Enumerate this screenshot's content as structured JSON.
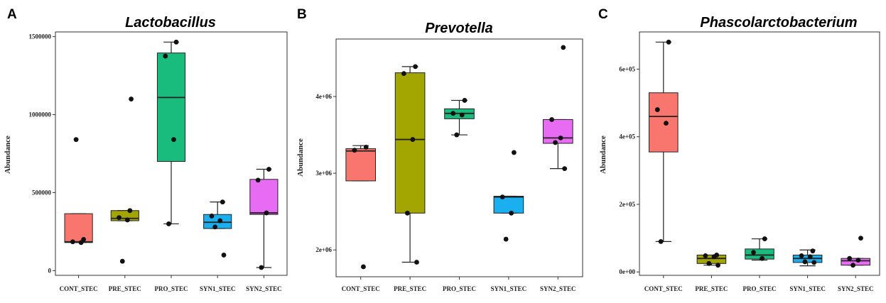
{
  "colors": {
    "CONT_STEC": "#F8766D",
    "PRE_STEC": "#A3A500",
    "PRO_STEC": "#1ABC7D",
    "SYN1_STEC": "#1AAFEF",
    "SYN2_STEC": "#E76BF3"
  },
  "chart_data": [
    {
      "type": "box",
      "panel": "A",
      "title": "Lactobacillus",
      "ylabel": "Abundance",
      "ylim": [
        -30000,
        1530000
      ],
      "yticks": [
        0,
        500000,
        1000000,
        1500000
      ],
      "ytick_labels": [
        "0",
        "500000",
        "1000000",
        "1500000"
      ],
      "categories": [
        "CONT_STEC",
        "PRE_STEC",
        "PRO_STEC",
        "SYN1_STEC",
        "SYN2_STEC"
      ],
      "boxes": [
        {
          "group": "CONT_STEC",
          "min": 180000,
          "q1": 180000,
          "median": 185000,
          "q3": 365000,
          "max": 365000,
          "points": [
            200000,
            185000,
            180000,
            840000
          ]
        },
        {
          "group": "PRE_STEC",
          "min": 320000,
          "q1": 320000,
          "median": 335000,
          "q3": 385000,
          "max": 385000,
          "points": [
            385000,
            340000,
            325000,
            60000,
            1100000
          ]
        },
        {
          "group": "PRO_STEC",
          "min": 300000,
          "q1": 700000,
          "median": 1110000,
          "q3": 1395000,
          "max": 1465000,
          "points": [
            1465000,
            1375000,
            840000,
            300000
          ]
        },
        {
          "group": "SYN1_STEC",
          "min": 270000,
          "q1": 270000,
          "median": 310000,
          "q3": 360000,
          "max": 440000,
          "points": [
            440000,
            350000,
            320000,
            280000,
            100000
          ]
        },
        {
          "group": "SYN2_STEC",
          "min": 20000,
          "q1": 360000,
          "median": 370000,
          "q3": 585000,
          "max": 650000,
          "points": [
            650000,
            580000,
            370000,
            20000
          ]
        }
      ]
    },
    {
      "type": "box",
      "panel": "B",
      "title": "Prevotella",
      "ylabel": "Abundance",
      "ylim": [
        1650000,
        4750000
      ],
      "yticks": [
        2000000,
        3000000,
        4000000
      ],
      "ytick_labels": [
        "2e+06",
        "3e+06",
        "4e+06"
      ],
      "categories": [
        "CONT_STEC",
        "PRE_STEC",
        "PRO_STEC",
        "SYN1_STEC",
        "SYN2_STEC"
      ],
      "boxes": [
        {
          "group": "CONT_STEC",
          "min": 2900000,
          "q1": 2900000,
          "median": 3290000,
          "q3": 3320000,
          "max": 3360000,
          "points": [
            3340000,
            3300000,
            1780000
          ]
        },
        {
          "group": "PRE_STEC",
          "min": 1840000,
          "q1": 2480000,
          "median": 3440000,
          "q3": 4310000,
          "max": 4390000,
          "points": [
            4390000,
            4300000,
            3440000,
            2480000,
            1840000
          ]
        },
        {
          "group": "PRO_STEC",
          "min": 3500000,
          "q1": 3710000,
          "median": 3780000,
          "q3": 3840000,
          "max": 3950000,
          "points": [
            3950000,
            3780000,
            3760000,
            3500000
          ]
        },
        {
          "group": "SYN1_STEC",
          "min": 2480000,
          "q1": 2480000,
          "median": 2690000,
          "q3": 2700000,
          "max": 2700000,
          "points": [
            3270000,
            2690000,
            2480000,
            2140000
          ]
        },
        {
          "group": "SYN2_STEC",
          "min": 3060000,
          "q1": 3390000,
          "median": 3460000,
          "q3": 3700000,
          "max": 3700000,
          "points": [
            4640000,
            3700000,
            3460000,
            3400000,
            3060000
          ]
        }
      ]
    },
    {
      "type": "box",
      "panel": "C",
      "title": "Phascolarctobacterium",
      "ylabel": "Abundance",
      "ylim": [
        -10000,
        710000
      ],
      "yticks": [
        0,
        200000,
        400000,
        600000
      ],
      "ytick_labels": [
        "0e+00",
        "2e+05",
        "4e+05",
        "6e+05"
      ],
      "categories": [
        "CONT_STEC",
        "PRE_STEC",
        "PRO_STEC",
        "SYN1_STEC",
        "SYN2_STEC"
      ],
      "boxes": [
        {
          "group": "CONT_STEC",
          "min": 90000,
          "q1": 355000,
          "median": 460000,
          "q3": 530000,
          "max": 680000,
          "points": [
            680000,
            480000,
            440000,
            90000
          ]
        },
        {
          "group": "PRE_STEC",
          "min": 20000,
          "q1": 25000,
          "median": 40000,
          "q3": 50000,
          "max": 50000,
          "points": [
            50000,
            48000,
            45000,
            25000,
            20000
          ]
        },
        {
          "group": "PRO_STEC",
          "min": 35000,
          "q1": 38000,
          "median": 50000,
          "q3": 68000,
          "max": 98000,
          "points": [
            98000,
            58000,
            40000
          ]
        },
        {
          "group": "SYN1_STEC",
          "min": 18000,
          "q1": 28000,
          "median": 40000,
          "q3": 50000,
          "max": 65000,
          "points": [
            62000,
            48000,
            45000,
            30000,
            28000
          ]
        },
        {
          "group": "SYN2_STEC",
          "min": 20000,
          "q1": 20000,
          "median": 33000,
          "q3": 40000,
          "max": 40000,
          "points": [
            100000,
            40000,
            35000,
            20000
          ]
        }
      ]
    }
  ]
}
